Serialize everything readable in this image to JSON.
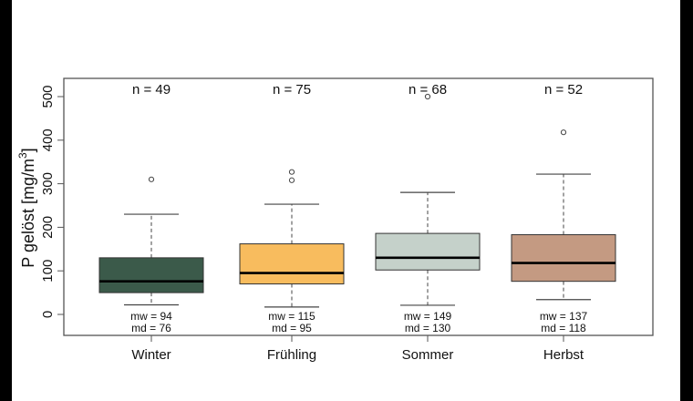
{
  "chart_data": {
    "type": "boxplot",
    "title": "",
    "xlabel": "",
    "ylabel": "P gelöst [mg/m³]",
    "ylabel_main": "P gelöst [mg/m",
    "ylabel_sup": "3",
    "ylabel_close": "]",
    "ylim": [
      -50,
      550
    ],
    "yticks": [
      0,
      100,
      200,
      300,
      400,
      500
    ],
    "grid": false,
    "legend": null,
    "categories": [
      "Winter",
      "Frühling",
      "Sommer",
      "Herbst"
    ],
    "series": [
      {
        "name": "Winter",
        "color": "#3b5a4a",
        "n": 49,
        "n_label": "n = 49",
        "whisker_low": 22,
        "q1": 50,
        "median": 76,
        "q3": 130,
        "whisker_high": 230,
        "outliers": [
          310
        ],
        "mean": 94,
        "mw_label": "mw = 94",
        "md_label": "md = 76"
      },
      {
        "name": "Frühling",
        "color": "#f8bc5e",
        "n": 75,
        "n_label": "n = 75",
        "whisker_low": 17,
        "q1": 70,
        "median": 95,
        "q3": 162,
        "whisker_high": 253,
        "outliers": [
          308,
          327
        ],
        "mean": 115,
        "mw_label": "mw = 115",
        "md_label": "md = 95"
      },
      {
        "name": "Sommer",
        "color": "#c5d1ca",
        "n": 68,
        "n_label": "n = 68",
        "whisker_low": 21,
        "q1": 102,
        "median": 130,
        "q3": 186,
        "whisker_high": 280,
        "outliers": [
          500
        ],
        "mean": 149,
        "mw_label": "mw = 149",
        "md_label": "md = 130"
      },
      {
        "name": "Herbst",
        "color": "#c49a82",
        "n": 52,
        "n_label": "n = 52",
        "whisker_low": 34,
        "q1": 76,
        "median": 118,
        "q3": 183,
        "whisker_high": 322,
        "outliers": [
          418
        ],
        "mean": 137,
        "mw_label": "mw = 137",
        "md_label": "md = 118"
      }
    ]
  }
}
